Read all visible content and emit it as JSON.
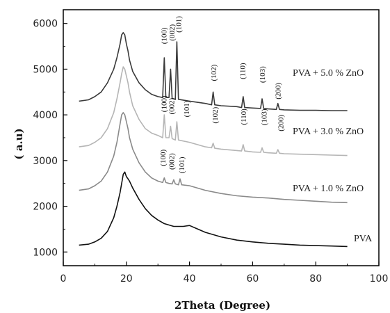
{
  "chart_data": {
    "type": "line",
    "title": "",
    "xlabel": "2Theta (Degree)",
    "ylabel": "( a.u)",
    "xlim": [
      0,
      100
    ],
    "ylim": [
      700,
      6300
    ],
    "xticks": [
      "0",
      "20",
      "40",
      "60",
      "80",
      "100"
    ],
    "yticks": [
      "1000",
      "2000",
      "3000",
      "4000",
      "5000",
      "6000"
    ],
    "grid": false,
    "series": [
      {
        "name": "PVA",
        "color": "#111111",
        "x": [
          5,
          8,
          10,
          12,
          14,
          16,
          17,
          18,
          18.5,
          19,
          19.5,
          20,
          20.5,
          21,
          22,
          24,
          26,
          28,
          30,
          32,
          35,
          38,
          40,
          42,
          45,
          50,
          55,
          60,
          65,
          70,
          75,
          80,
          85,
          90
        ],
        "y": [
          1150,
          1170,
          1220,
          1300,
          1450,
          1750,
          2000,
          2300,
          2500,
          2700,
          2750,
          2650,
          2600,
          2550,
          2400,
          2150,
          1950,
          1800,
          1700,
          1620,
          1560,
          1560,
          1580,
          1520,
          1430,
          1330,
          1260,
          1220,
          1190,
          1170,
          1150,
          1140,
          1130,
          1120
        ]
      },
      {
        "name": "PVA + 1.0 % ZnO",
        "color": "#8a8a8a",
        "x": [
          5,
          8,
          10,
          12,
          14,
          16,
          17,
          18,
          18.5,
          19,
          19.5,
          20,
          20.5,
          21,
          22,
          24,
          26,
          28,
          30,
          31.5,
          32,
          32.5,
          33.5,
          34.5,
          35,
          35.5,
          36.5,
          37,
          37.5,
          40,
          45,
          50,
          55,
          60,
          65,
          70,
          75,
          80,
          85,
          90
        ],
        "y": [
          2350,
          2380,
          2450,
          2550,
          2750,
          3100,
          3400,
          3800,
          4000,
          4050,
          4000,
          3850,
          3700,
          3500,
          3250,
          2950,
          2750,
          2620,
          2550,
          2520,
          2620,
          2520,
          2500,
          2490,
          2580,
          2490,
          2470,
          2600,
          2470,
          2450,
          2350,
          2280,
          2230,
          2200,
          2180,
          2150,
          2130,
          2110,
          2090,
          2080
        ]
      },
      {
        "name": "PVA + 3.0 % ZnO",
        "color": "#b5b5b5",
        "x": [
          5,
          8,
          10,
          12,
          14,
          16,
          17,
          18,
          18.5,
          19,
          19.5,
          20,
          20.5,
          21,
          22,
          24,
          26,
          28,
          30,
          31.5,
          32,
          32.5,
          33.5,
          34,
          34.5,
          35.5,
          36,
          36.5,
          40,
          45,
          47,
          47.5,
          48,
          50,
          55,
          56.5,
          57,
          57.5,
          60,
          62.5,
          63,
          63.5,
          65,
          67.5,
          68,
          68.5,
          70,
          75,
          80,
          85,
          90
        ],
        "y": [
          3300,
          3330,
          3400,
          3500,
          3700,
          4050,
          4350,
          4700,
          4900,
          5050,
          5000,
          4850,
          4700,
          4500,
          4200,
          3900,
          3700,
          3600,
          3550,
          3500,
          4000,
          3500,
          3500,
          3750,
          3480,
          3450,
          3850,
          3450,
          3400,
          3300,
          3280,
          3380,
          3270,
          3250,
          3220,
          3210,
          3350,
          3210,
          3190,
          3180,
          3280,
          3180,
          3170,
          3160,
          3240,
          3160,
          3150,
          3140,
          3130,
          3120,
          3110
        ]
      },
      {
        "name": "PVA + 5.0 % ZnO",
        "color": "#3a3a3a",
        "x": [
          5,
          8,
          10,
          12,
          14,
          16,
          17,
          18,
          18.5,
          19,
          19.5,
          20,
          20.5,
          21,
          22,
          24,
          26,
          28,
          30,
          31.5,
          32,
          32.5,
          33.5,
          34,
          34.5,
          35.5,
          36,
          36.5,
          40,
          45,
          47,
          47.5,
          48,
          50,
          55,
          56.5,
          57,
          57.5,
          60,
          62.5,
          63,
          63.5,
          65,
          67.5,
          68,
          68.5,
          70,
          75,
          80,
          85,
          90
        ],
        "y": [
          4300,
          4330,
          4400,
          4500,
          4700,
          5000,
          5250,
          5550,
          5750,
          5800,
          5750,
          5550,
          5400,
          5200,
          4950,
          4700,
          4550,
          4450,
          4400,
          4380,
          5250,
          4380,
          4380,
          5000,
          4360,
          4340,
          5600,
          4340,
          4300,
          4250,
          4220,
          4500,
          4220,
          4200,
          4180,
          4160,
          4400,
          4160,
          4150,
          4140,
          4350,
          4140,
          4130,
          4120,
          4250,
          4120,
          4110,
          4100,
          4100,
          4090,
          4090
        ]
      }
    ],
    "peak_labels": [
      {
        "text": "(100)",
        "x": 31.8,
        "y": 5550
      },
      {
        "text": "(002)",
        "x": 34.4,
        "y": 5620
      },
      {
        "text": "(101)",
        "x": 36.4,
        "y": 5800
      },
      {
        "text": "(102)",
        "x": 47.6,
        "y": 4740
      },
      {
        "text": "(110)",
        "x": 56.7,
        "y": 4780
      },
      {
        "text": "(103)",
        "x": 63.0,
        "y": 4700
      },
      {
        "text": "(200)",
        "x": 68.0,
        "y": 4340
      },
      {
        "text": "(100)",
        "x": 31.8,
        "y": 4060
      },
      {
        "text": "(002)",
        "x": 34.2,
        "y": 4010
      },
      {
        "text": "(101)",
        "x": 39.0,
        "y": 3950
      },
      {
        "text": "(102)",
        "x": 48.0,
        "y": 3810
      },
      {
        "text": "(110)",
        "x": 57.0,
        "y": 3780
      },
      {
        "text": "(103)",
        "x": 63.6,
        "y": 3770
      },
      {
        "text": "(200)",
        "x": 68.8,
        "y": 3640
      },
      {
        "text": "(100)",
        "x": 31.5,
        "y": 2880
      },
      {
        "text": "(002)",
        "x": 34.2,
        "y": 2800
      },
      {
        "text": "(101)",
        "x": 37.4,
        "y": 2720
      }
    ]
  }
}
